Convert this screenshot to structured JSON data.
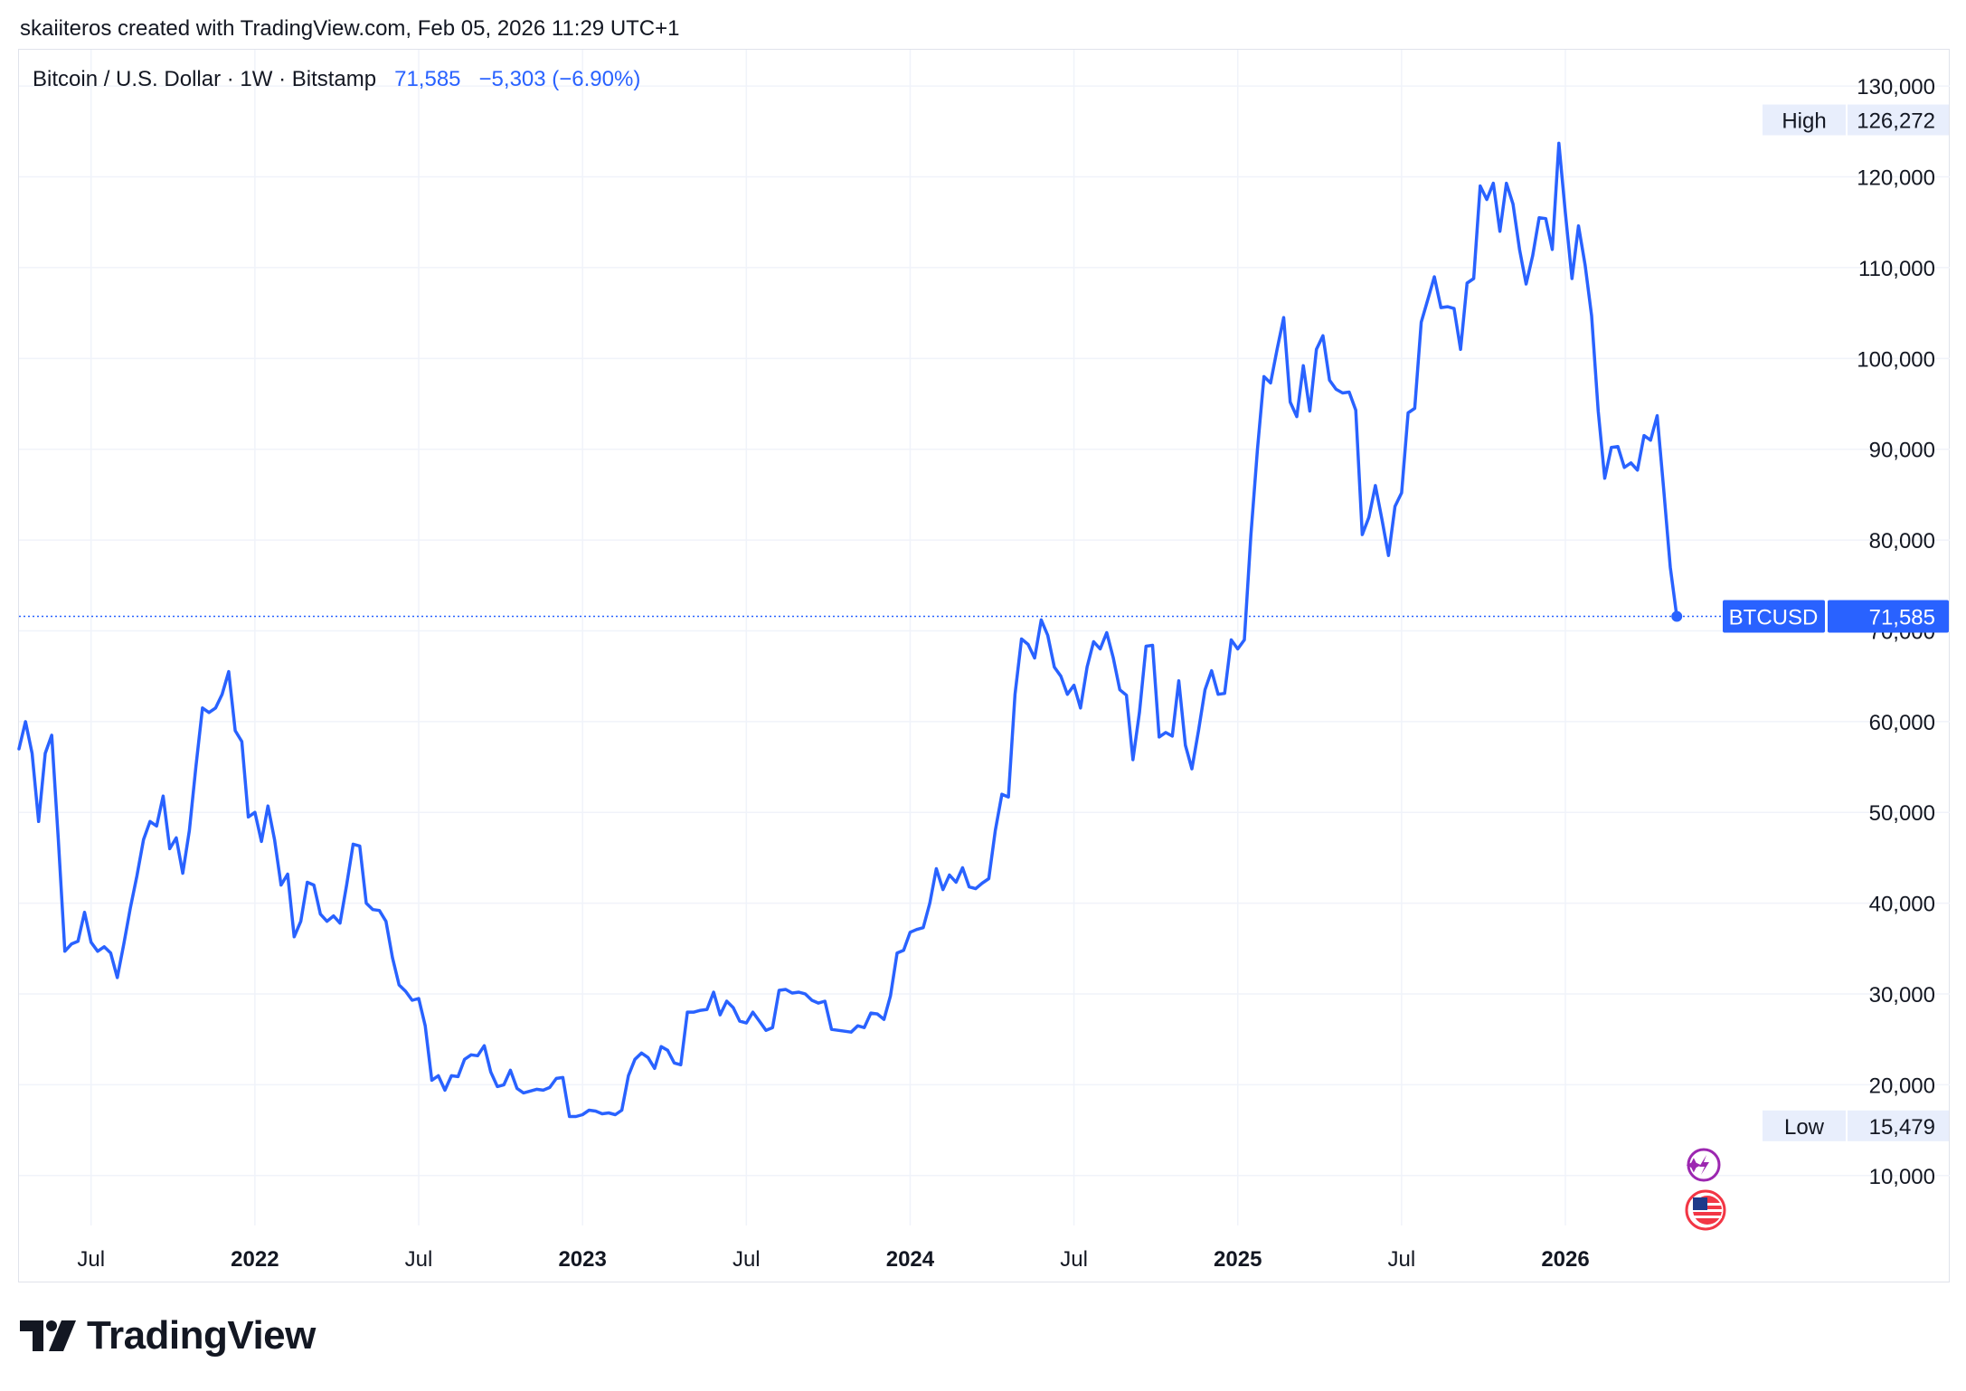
{
  "credit": "skaiiteros created with TradingView.com, Feb 05, 2026 11:29 UTC+1",
  "legend": {
    "symbol": "Bitcoin / U.S. Dollar · 1W · Bitstamp",
    "last": "71,585",
    "change": "−5,303 (−6.90%)"
  },
  "footer": {
    "brand": "TradingView"
  },
  "colors": {
    "line": "#2962ff",
    "grid": "#f0f3fa",
    "text": "#131722",
    "tag_bg": "#e8eefc"
  },
  "chart_data": {
    "type": "line",
    "series": [
      {
        "name": "BTCUSD"
      }
    ],
    "x_unit": "years",
    "x_range": [
      2021.28,
      2026.77
    ],
    "ylim": [
      4500,
      134000
    ],
    "y_ticks": [
      "130,000",
      "120,000",
      "110,000",
      "100,000",
      "90,000",
      "80,000",
      "70,000",
      "60,000",
      "50,000",
      "40,000",
      "30,000",
      "20,000",
      "10,000"
    ],
    "y_tick_values": [
      130000,
      120000,
      110000,
      100000,
      90000,
      80000,
      70000,
      60000,
      50000,
      40000,
      30000,
      20000,
      10000
    ],
    "x_ticks": [
      {
        "label": "Jul",
        "x": 2021.5,
        "bold": false
      },
      {
        "label": "2022",
        "x": 2022.0,
        "bold": true
      },
      {
        "label": "Jul",
        "x": 2022.5,
        "bold": false
      },
      {
        "label": "2023",
        "x": 2023.0,
        "bold": true
      },
      {
        "label": "Jul",
        "x": 2023.5,
        "bold": false
      },
      {
        "label": "2024",
        "x": 2024.0,
        "bold": true
      },
      {
        "label": "Jul",
        "x": 2024.5,
        "bold": false
      },
      {
        "label": "2025",
        "x": 2025.0,
        "bold": true
      },
      {
        "label": "Jul",
        "x": 2025.5,
        "bold": false
      },
      {
        "label": "2026",
        "x": 2026.0,
        "bold": true
      }
    ],
    "high": {
      "label": "High",
      "value": 126272,
      "text": "126,272"
    },
    "low": {
      "label": "Low",
      "value": 15479,
      "text": "15,479"
    },
    "last": {
      "label": "BTCUSD",
      "value": 71585,
      "text": "71,585"
    },
    "points": [
      [
        2021.28,
        57000
      ],
      [
        2021.3,
        60000
      ],
      [
        2021.32,
        56500
      ],
      [
        2021.34,
        49000
      ],
      [
        2021.36,
        56500
      ],
      [
        2021.38,
        58500
      ],
      [
        2021.4,
        47000
      ],
      [
        2021.42,
        34700
      ],
      [
        2021.44,
        35500
      ],
      [
        2021.46,
        35800
      ],
      [
        2021.48,
        39000
      ],
      [
        2021.5,
        35700
      ],
      [
        2021.52,
        34700
      ],
      [
        2021.54,
        35200
      ],
      [
        2021.56,
        34500
      ],
      [
        2021.58,
        31800
      ],
      [
        2021.6,
        35500
      ],
      [
        2021.62,
        39500
      ],
      [
        2021.64,
        43000
      ],
      [
        2021.66,
        47000
      ],
      [
        2021.68,
        49000
      ],
      [
        2021.7,
        48500
      ],
      [
        2021.72,
        51800
      ],
      [
        2021.74,
        46000
      ],
      [
        2021.76,
        47200
      ],
      [
        2021.78,
        43300
      ],
      [
        2021.8,
        48000
      ],
      [
        2021.82,
        55000
      ],
      [
        2021.84,
        61500
      ],
      [
        2021.86,
        61000
      ],
      [
        2021.88,
        61500
      ],
      [
        2021.9,
        63000
      ],
      [
        2021.92,
        65500
      ],
      [
        2021.94,
        59000
      ],
      [
        2021.96,
        57800
      ],
      [
        2021.98,
        49500
      ],
      [
        2022.0,
        50000
      ],
      [
        2022.02,
        46800
      ],
      [
        2022.04,
        50700
      ],
      [
        2022.06,
        47000
      ],
      [
        2022.08,
        42000
      ],
      [
        2022.1,
        43200
      ],
      [
        2022.12,
        36300
      ],
      [
        2022.14,
        38000
      ],
      [
        2022.16,
        42300
      ],
      [
        2022.18,
        42000
      ],
      [
        2022.2,
        38800
      ],
      [
        2022.22,
        38000
      ],
      [
        2022.24,
        38600
      ],
      [
        2022.26,
        37800
      ],
      [
        2022.28,
        42000
      ],
      [
        2022.3,
        46500
      ],
      [
        2022.32,
        46300
      ],
      [
        2022.34,
        40000
      ],
      [
        2022.36,
        39300
      ],
      [
        2022.38,
        39200
      ],
      [
        2022.4,
        38000
      ],
      [
        2022.42,
        34000
      ],
      [
        2022.44,
        31000
      ],
      [
        2022.46,
        30300
      ],
      [
        2022.48,
        29300
      ],
      [
        2022.5,
        29500
      ],
      [
        2022.52,
        26500
      ],
      [
        2022.54,
        20500
      ],
      [
        2022.56,
        21000
      ],
      [
        2022.58,
        19400
      ],
      [
        2022.6,
        21000
      ],
      [
        2022.62,
        20900
      ],
      [
        2022.64,
        22800
      ],
      [
        2022.66,
        23300
      ],
      [
        2022.68,
        23200
      ],
      [
        2022.7,
        24300
      ],
      [
        2022.72,
        21400
      ],
      [
        2022.74,
        19800
      ],
      [
        2022.76,
        20000
      ],
      [
        2022.78,
        21600
      ],
      [
        2022.8,
        19600
      ],
      [
        2022.82,
        19100
      ],
      [
        2022.84,
        19300
      ],
      [
        2022.86,
        19500
      ],
      [
        2022.88,
        19400
      ],
      [
        2022.9,
        19700
      ],
      [
        2022.92,
        20700
      ],
      [
        2022.94,
        20800
      ],
      [
        2022.96,
        16500
      ],
      [
        2022.98,
        16500
      ],
      [
        2023.0,
        16700
      ],
      [
        2023.02,
        17200
      ],
      [
        2023.04,
        17100
      ],
      [
        2023.06,
        16800
      ],
      [
        2023.08,
        16900
      ],
      [
        2023.1,
        16700
      ],
      [
        2023.12,
        17200
      ],
      [
        2023.14,
        21000
      ],
      [
        2023.16,
        22800
      ],
      [
        2023.18,
        23500
      ],
      [
        2023.2,
        23000
      ],
      [
        2023.22,
        21800
      ],
      [
        2023.24,
        24200
      ],
      [
        2023.26,
        23800
      ],
      [
        2023.28,
        22400
      ],
      [
        2023.3,
        22200
      ],
      [
        2023.32,
        28000
      ],
      [
        2023.34,
        28000
      ],
      [
        2023.36,
        28200
      ],
      [
        2023.38,
        28300
      ],
      [
        2023.4,
        30200
      ],
      [
        2023.42,
        27700
      ],
      [
        2023.44,
        29200
      ],
      [
        2023.46,
        28500
      ],
      [
        2023.48,
        27000
      ],
      [
        2023.5,
        26800
      ],
      [
        2023.52,
        28000
      ],
      [
        2023.54,
        27000
      ],
      [
        2023.56,
        26000
      ],
      [
        2023.58,
        26300
      ],
      [
        2023.6,
        30400
      ],
      [
        2023.62,
        30500
      ],
      [
        2023.64,
        30100
      ],
      [
        2023.66,
        30200
      ],
      [
        2023.68,
        30000
      ],
      [
        2023.7,
        29300
      ],
      [
        2023.72,
        29000
      ],
      [
        2023.74,
        29200
      ],
      [
        2023.76,
        26100
      ],
      [
        2023.78,
        26000
      ],
      [
        2023.8,
        25900
      ],
      [
        2023.82,
        25800
      ],
      [
        2023.84,
        26500
      ],
      [
        2023.86,
        26300
      ],
      [
        2023.88,
        27900
      ],
      [
        2023.9,
        27800
      ],
      [
        2023.92,
        27200
      ],
      [
        2023.94,
        29800
      ],
      [
        2023.96,
        34500
      ],
      [
        2023.98,
        34800
      ],
      [
        2024.0,
        36800
      ],
      [
        2024.02,
        37100
      ],
      [
        2024.04,
        37300
      ],
      [
        2024.06,
        40000
      ],
      [
        2024.08,
        43800
      ],
      [
        2024.1,
        41500
      ],
      [
        2024.12,
        43100
      ],
      [
        2024.14,
        42300
      ],
      [
        2024.16,
        43900
      ],
      [
        2024.18,
        41800
      ],
      [
        2024.2,
        41600
      ],
      [
        2024.22,
        42200
      ],
      [
        2024.24,
        42700
      ],
      [
        2024.26,
        48000
      ],
      [
        2024.28,
        52000
      ],
      [
        2024.3,
        51700
      ],
      [
        2024.32,
        63000
      ],
      [
        2024.34,
        69100
      ],
      [
        2024.36,
        68500
      ],
      [
        2024.38,
        67000
      ],
      [
        2024.4,
        71200
      ],
      [
        2024.42,
        69500
      ],
      [
        2024.44,
        66000
      ],
      [
        2024.46,
        65000
      ],
      [
        2024.48,
        63000
      ],
      [
        2024.5,
        64000
      ],
      [
        2024.52,
        61500
      ],
      [
        2024.54,
        66000
      ],
      [
        2024.56,
        68800
      ],
      [
        2024.58,
        68000
      ],
      [
        2024.6,
        69800
      ],
      [
        2024.62,
        67000
      ],
      [
        2024.64,
        63500
      ],
      [
        2024.66,
        62900
      ],
      [
        2024.68,
        55800
      ],
      [
        2024.7,
        61000
      ],
      [
        2024.72,
        68300
      ],
      [
        2024.74,
        68400
      ],
      [
        2024.76,
        58300
      ],
      [
        2024.78,
        58800
      ],
      [
        2024.8,
        58400
      ],
      [
        2024.82,
        64500
      ],
      [
        2024.84,
        57400
      ],
      [
        2024.86,
        54800
      ],
      [
        2024.88,
        59000
      ],
      [
        2024.9,
        63500
      ],
      [
        2024.92,
        65600
      ],
      [
        2024.94,
        63000
      ],
      [
        2024.96,
        63100
      ],
      [
        2024.98,
        69000
      ],
      [
        2025.0,
        68000
      ],
      [
        2025.02,
        69000
      ],
      [
        2025.04,
        80500
      ],
      [
        2025.06,
        90000
      ],
      [
        2025.08,
        98000
      ],
      [
        2025.1,
        97300
      ],
      [
        2025.12,
        101000
      ],
      [
        2025.14,
        104500
      ],
      [
        2025.16,
        95200
      ],
      [
        2025.18,
        93600
      ],
      [
        2025.2,
        99200
      ],
      [
        2025.22,
        94200
      ],
      [
        2025.24,
        101000
      ],
      [
        2025.26,
        102500
      ],
      [
        2025.28,
        97600
      ],
      [
        2025.3,
        96600
      ],
      [
        2025.32,
        96200
      ],
      [
        2025.34,
        96300
      ],
      [
        2025.36,
        94300
      ],
      [
        2025.38,
        80600
      ],
      [
        2025.4,
        82500
      ],
      [
        2025.42,
        86000
      ],
      [
        2025.44,
        82300
      ],
      [
        2025.46,
        78300
      ],
      [
        2025.48,
        83700
      ],
      [
        2025.5,
        85200
      ],
      [
        2025.52,
        94000
      ],
      [
        2025.54,
        94500
      ],
      [
        2025.56,
        104000
      ],
      [
        2025.58,
        106500
      ],
      [
        2025.6,
        109000
      ],
      [
        2025.62,
        105600
      ],
      [
        2025.64,
        105700
      ],
      [
        2025.66,
        105500
      ],
      [
        2025.68,
        101000
      ],
      [
        2025.7,
        108300
      ],
      [
        2025.72,
        108800
      ],
      [
        2025.74,
        119000
      ],
      [
        2025.76,
        117500
      ],
      [
        2025.78,
        119300
      ],
      [
        2025.8,
        114000
      ],
      [
        2025.82,
        119300
      ],
      [
        2025.84,
        117000
      ],
      [
        2025.86,
        112000
      ],
      [
        2025.88,
        108200
      ],
      [
        2025.9,
        111300
      ],
      [
        2025.92,
        115500
      ],
      [
        2025.94,
        115400
      ],
      [
        2025.96,
        112000
      ],
      [
        2025.98,
        123700
      ],
      [
        2026.0,
        116000
      ],
      [
        2026.02,
        108800
      ],
      [
        2026.04,
        114600
      ],
      [
        2026.06,
        110300
      ],
      [
        2026.08,
        104700
      ],
      [
        2026.1,
        94200
      ],
      [
        2026.12,
        86800
      ],
      [
        2026.14,
        90200
      ],
      [
        2026.16,
        90300
      ],
      [
        2026.18,
        88000
      ],
      [
        2026.2,
        88500
      ],
      [
        2026.22,
        87700
      ],
      [
        2026.24,
        91500
      ],
      [
        2026.26,
        91000
      ],
      [
        2026.28,
        93700
      ],
      [
        2026.3,
        85600
      ],
      [
        2026.32,
        77000
      ],
      [
        2026.34,
        71585
      ]
    ]
  }
}
